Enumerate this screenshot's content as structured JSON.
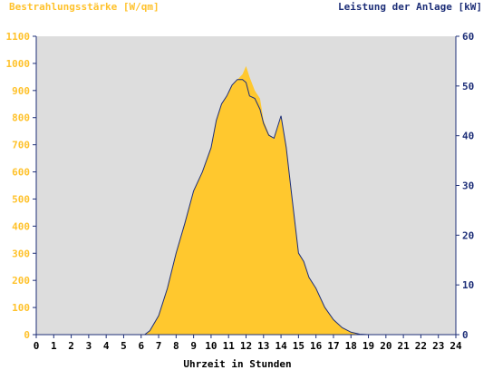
{
  "chart_data": {
    "type": "area",
    "left_axis_title": "Bestrahlungsstärke [W/qm]",
    "right_axis_title": "Leistung der Anlage [kW]",
    "xlabel": "Uhrzeit in Stunden",
    "xlim": [
      0,
      24
    ],
    "x_ticks": [
      "0",
      "1",
      "2",
      "3",
      "4",
      "5",
      "6",
      "7",
      "8",
      "9",
      "10",
      "11",
      "12",
      "13",
      "14",
      "15",
      "16",
      "17",
      "18",
      "19",
      "20",
      "21",
      "22",
      "23",
      "24"
    ],
    "ylim_left": [
      0,
      1100
    ],
    "y_ticks_left": [
      "0",
      "100",
      "200",
      "300",
      "400",
      "500",
      "600",
      "700",
      "800",
      "900",
      "1000",
      "1100"
    ],
    "ylim_right": [
      0,
      60
    ],
    "y_ticks_right": [
      "0",
      "10",
      "20",
      "30",
      "40",
      "50",
      "60"
    ],
    "grid": false,
    "colors": {
      "plot_background": "#dddddd",
      "irradiance_fill": "#ffc82e",
      "power_line": "#1e2f78",
      "left_axis_text": "#ffc22c",
      "right_axis_text": "#1e2f78"
    },
    "series": [
      {
        "axis": "left",
        "style": "filled-area",
        "x": [
          0,
          6.2,
          6.5,
          7.0,
          7.5,
          8.0,
          8.5,
          9.0,
          9.5,
          10.0,
          10.3,
          10.6,
          10.9,
          11.2,
          11.5,
          11.8,
          12.0,
          12.2,
          12.5,
          12.8,
          13.0,
          13.3,
          13.6,
          14.0,
          14.3,
          14.6,
          15.0,
          15.3,
          15.6,
          16.0,
          16.5,
          17.0,
          17.5,
          18.0,
          18.5,
          19.0,
          24
        ],
        "y": [
          0,
          0,
          15,
          70,
          170,
          300,
          410,
          530,
          600,
          690,
          790,
          850,
          880,
          920,
          940,
          960,
          990,
          950,
          900,
          870,
          790,
          740,
          720,
          800,
          700,
          520,
          300,
          270,
          210,
          170,
          100,
          55,
          25,
          10,
          2,
          0,
          0
        ]
      },
      {
        "axis": "right",
        "style": "line",
        "x": [
          0,
          6.2,
          6.5,
          7.0,
          7.5,
          8.0,
          8.5,
          9.0,
          9.5,
          10.0,
          10.3,
          10.6,
          10.9,
          11.2,
          11.5,
          11.8,
          12.0,
          12.2,
          12.5,
          12.8,
          13.0,
          13.3,
          13.6,
          14.0,
          14.3,
          14.6,
          15.0,
          15.3,
          15.6,
          16.0,
          16.5,
          17.0,
          17.5,
          18.0,
          18.5,
          19.0,
          24
        ],
        "y": [
          0,
          0,
          0.8,
          3.8,
          9.3,
          16.4,
          22.4,
          28.9,
          32.7,
          37.6,
          43.1,
          46.4,
          48.0,
          50.2,
          51.3,
          51.3,
          50.7,
          48.0,
          47.5,
          45.3,
          42.5,
          40.1,
          39.5,
          44.0,
          37.6,
          28.4,
          16.4,
          14.7,
          11.5,
          9.3,
          5.5,
          3.0,
          1.4,
          0.5,
          0.1,
          0,
          0
        ]
      }
    ]
  }
}
